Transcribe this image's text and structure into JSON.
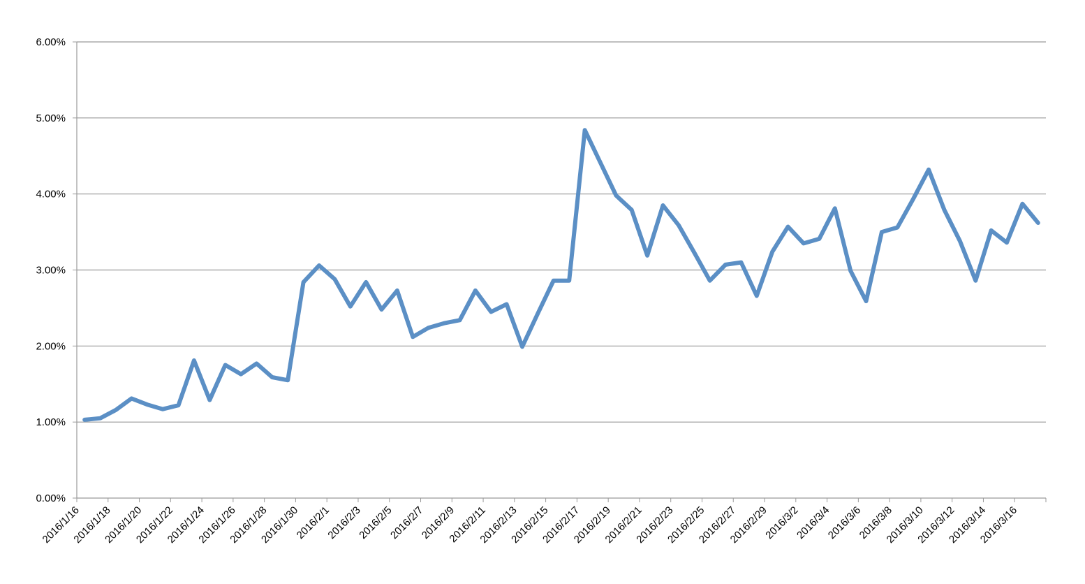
{
  "chart_data": {
    "type": "line",
    "categories": [
      "2016/1/16",
      null,
      "2016/1/18",
      null,
      "2016/1/20",
      null,
      "2016/1/22",
      null,
      "2016/1/24",
      null,
      "2016/1/26",
      null,
      "2016/1/28",
      null,
      "2016/1/30",
      null,
      "2016/2/1",
      null,
      "2016/2/3",
      null,
      "2016/2/5",
      null,
      "2016/2/7",
      null,
      "2016/2/9",
      null,
      "2016/2/11",
      null,
      "2016/2/13",
      null,
      "2016/2/15",
      null,
      "2016/2/17",
      null,
      "2016/2/19",
      null,
      "2016/2/21",
      null,
      "2016/2/23",
      null,
      "2016/2/25",
      null,
      "2016/2/27",
      null,
      "2016/2/29",
      null,
      "2016/3/2",
      null,
      "2016/3/4",
      null,
      "2016/3/6",
      null,
      "2016/3/8",
      null,
      "2016/3/10",
      null,
      "2016/3/12",
      null,
      "2016/3/14",
      null,
      "2016/3/16",
      null
    ],
    "values": [
      1.03,
      1.05,
      1.16,
      1.31,
      1.23,
      1.17,
      1.22,
      1.81,
      1.29,
      1.75,
      1.63,
      1.77,
      1.59,
      1.55,
      2.84,
      3.06,
      2.88,
      2.52,
      2.84,
      2.48,
      2.73,
      2.12,
      2.24,
      2.3,
      2.34,
      2.73,
      2.45,
      2.55,
      1.99,
      2.43,
      2.86,
      2.86,
      4.84,
      4.41,
      3.98,
      3.79,
      3.19,
      3.85,
      3.59,
      3.23,
      2.86,
      3.07,
      3.1,
      2.66,
      3.24,
      3.57,
      3.35,
      3.41,
      3.81,
      2.99,
      2.59,
      3.5,
      3.56,
      3.93,
      4.32,
      3.79,
      3.38,
      2.86,
      3.52,
      3.36,
      3.87,
      3.62
    ],
    "color": "#5b8fc5",
    "ylim": [
      0,
      6
    ],
    "yticks": [
      {
        "value": 0,
        "label": "0.00%"
      },
      {
        "value": 1,
        "label": "1.00%"
      },
      {
        "value": 2,
        "label": "2.00%"
      },
      {
        "value": 3,
        "label": "3.00%"
      },
      {
        "value": 4,
        "label": "4.00%"
      },
      {
        "value": 5,
        "label": "5.00%"
      },
      {
        "value": 6,
        "label": "6.00%"
      }
    ],
    "grid": true
  }
}
